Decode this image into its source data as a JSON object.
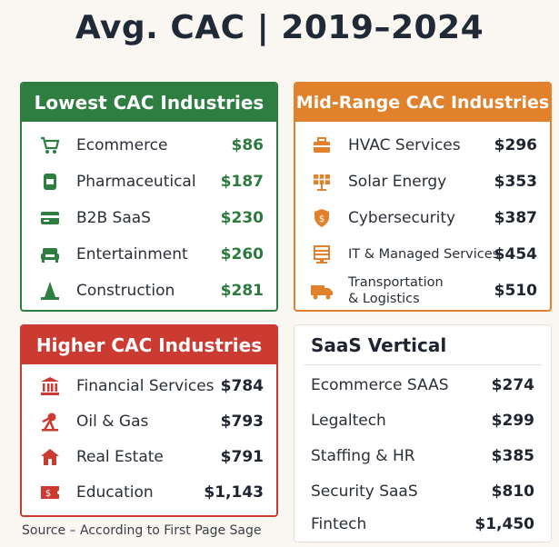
{
  "title": "Avg. CAC | 2019–2024",
  "colors": {
    "green": "#2e7d41",
    "orange": "#e2812b",
    "red": "#cc3b32",
    "valueGreen": "#2d7a3e"
  },
  "lowest": {
    "header": "Lowest CAC Industries",
    "rows": [
      {
        "icon": "cart-icon",
        "label": "Ecommerce",
        "value": "$86"
      },
      {
        "icon": "pill-bottle-icon",
        "label": "Pharmaceutical",
        "value": "$187"
      },
      {
        "icon": "card-icon",
        "label": "B2B SaaS",
        "value": "$230"
      },
      {
        "icon": "sofa-icon",
        "label": "Entertainment",
        "value": "$260"
      },
      {
        "icon": "cone-icon",
        "label": "Construction",
        "value": "$281"
      }
    ]
  },
  "mid": {
    "header": "Mid-Range CAC Industries",
    "rows": [
      {
        "icon": "toolbox-icon",
        "label": "HVAC Services",
        "value": "$296"
      },
      {
        "icon": "solar-panel-icon",
        "label": "Solar Energy",
        "value": "$353"
      },
      {
        "icon": "shield-icon",
        "label": "Cybersecurity",
        "value": "$387"
      },
      {
        "icon": "server-icon",
        "label": "IT & Managed Services",
        "value": "$454"
      },
      {
        "icon": "truck-icon",
        "label": "Transportation & Logistics",
        "value": "$510"
      }
    ]
  },
  "higher": {
    "header": "Higher CAC Industries",
    "rows": [
      {
        "icon": "bank-icon",
        "label": "Financial Services",
        "value": "$784"
      },
      {
        "icon": "oil-pump-icon",
        "label": "Oil & Gas",
        "value": "$793"
      },
      {
        "icon": "house-icon",
        "label": "Real Estate",
        "value": "$791"
      },
      {
        "icon": "ticket-icon",
        "label": "Education",
        "value": "$1,143"
      }
    ]
  },
  "saas": {
    "header": "SaaS Vertical",
    "rows": [
      {
        "label": "Ecommerce SAAS",
        "value": "$274"
      },
      {
        "label": "Legaltech",
        "value": "$299"
      },
      {
        "label": "Staffing & HR",
        "value": "$385"
      },
      {
        "label": "Security SaaS",
        "value": "$810"
      },
      {
        "label": "Fintech",
        "value": "$1,450"
      }
    ]
  },
  "source": "Source – According to First Page Sage"
}
